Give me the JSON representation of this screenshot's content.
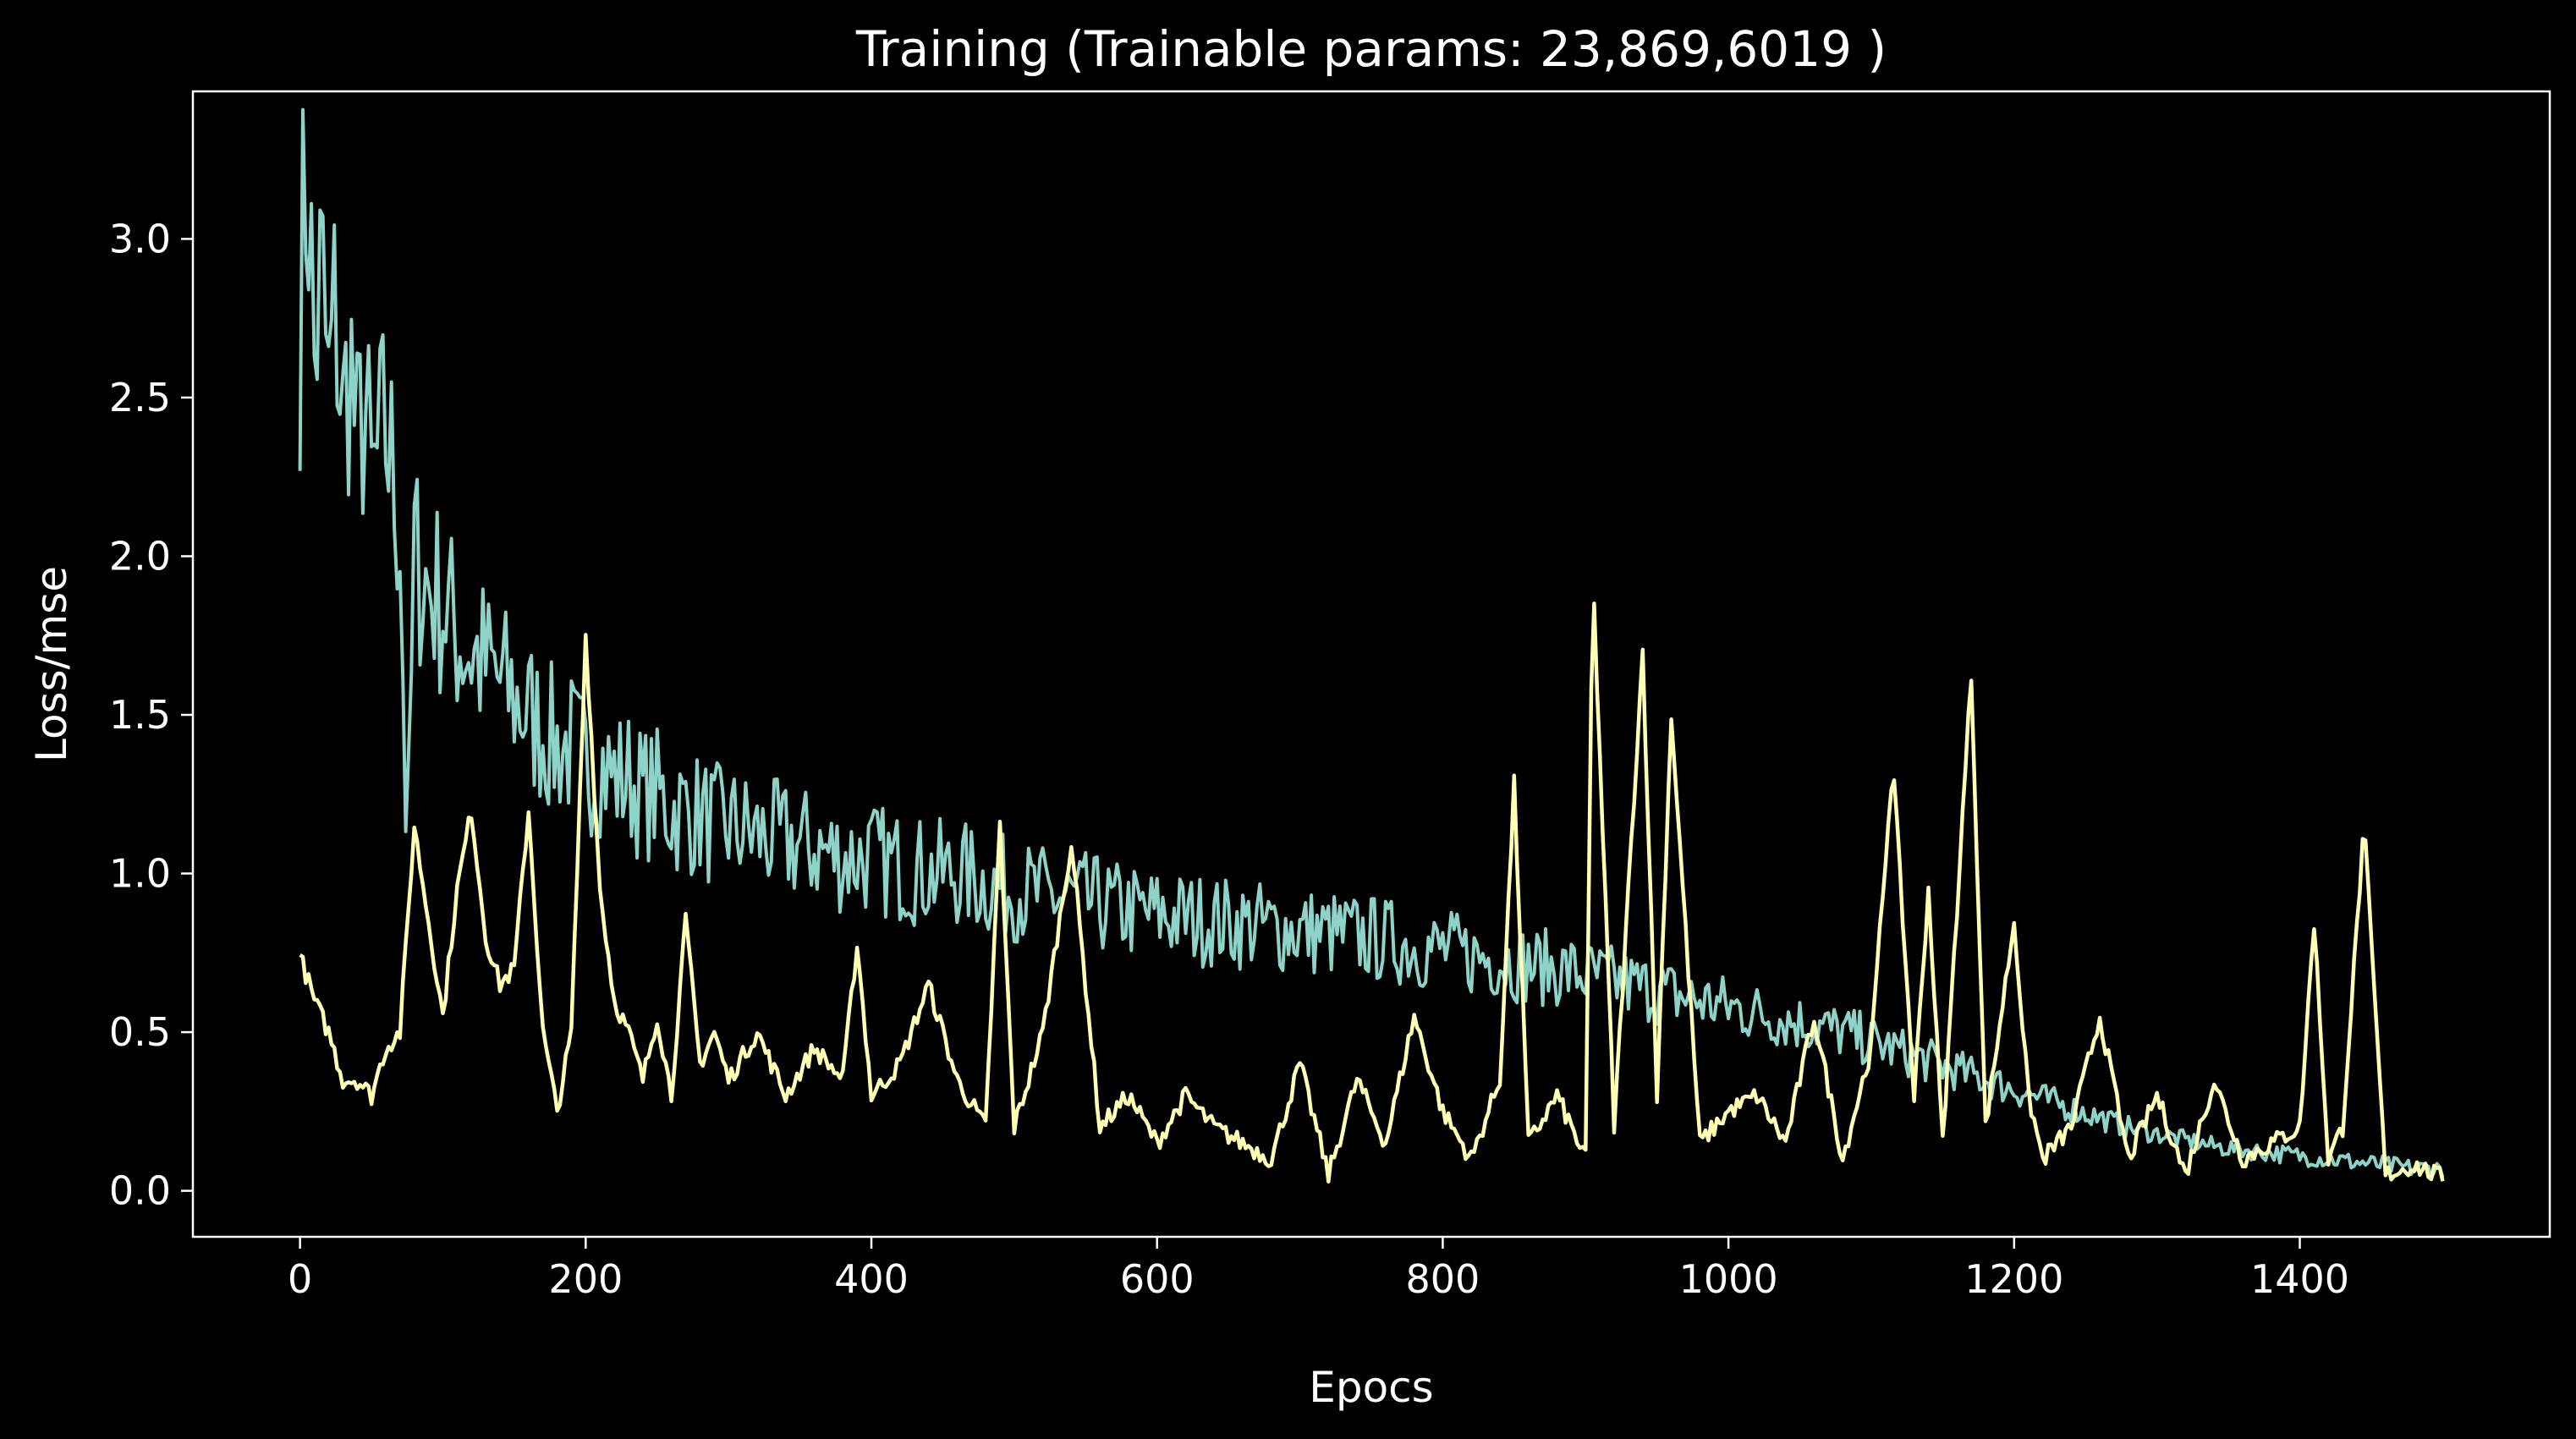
{
  "chart_data": {
    "type": "line",
    "title": "Training (Trainable params: 23,869,6019 )",
    "xlabel": "Epocs",
    "ylabel": "Loss/mse",
    "xlim": [
      -75,
      1575
    ],
    "ylim": [
      -0.145,
      3.465
    ],
    "xticks": [
      0,
      200,
      400,
      600,
      800,
      1000,
      1200,
      1400
    ],
    "yticks": [
      0.0,
      0.5,
      1.0,
      1.5,
      2.0,
      2.5,
      3.0
    ],
    "xtick_labels": [
      "0",
      "200",
      "400",
      "600",
      "800",
      "1000",
      "1200",
      "1400"
    ],
    "ytick_labels": [
      "0.0",
      "0.5",
      "1.0",
      "1.5",
      "2.0",
      "2.5",
      "3.0"
    ],
    "grid": false,
    "legend": "none",
    "background": "#000000",
    "series": [
      {
        "color": "#8dd3c7",
        "x": [
          0,
          5,
          10,
          15,
          20,
          25,
          30,
          35,
          40,
          45,
          50,
          60,
          70,
          75,
          80,
          90,
          100,
          110,
          120,
          130,
          140,
          150,
          160,
          170,
          180,
          190,
          200,
          210,
          220,
          230,
          240,
          250,
          260,
          270,
          280,
          290,
          300,
          320,
          340,
          360,
          380,
          400,
          420,
          440,
          460,
          480,
          500,
          520,
          540,
          560,
          580,
          600,
          620,
          640,
          660,
          680,
          700,
          720,
          740,
          760,
          780,
          800,
          820,
          840,
          860,
          880,
          900,
          920,
          940,
          960,
          980,
          1000,
          1020,
          1040,
          1060,
          1080,
          1100,
          1120,
          1140,
          1160,
          1180,
          1200,
          1220,
          1240,
          1260,
          1280,
          1300,
          1320,
          1340,
          1360,
          1380,
          1400,
          1420,
          1440,
          1460,
          1480,
          1500
        ],
        "y": [
          2.75,
          3.3,
          2.6,
          2.9,
          2.5,
          2.8,
          2.4,
          2.65,
          2.3,
          2.5,
          2.2,
          2.4,
          2.1,
          1.0,
          2.0,
          1.9,
          1.85,
          1.75,
          1.7,
          1.65,
          1.6,
          1.55,
          1.5,
          1.45,
          1.4,
          1.4,
          1.35,
          1.35,
          1.3,
          1.3,
          1.25,
          1.25,
          1.2,
          1.2,
          1.18,
          1.15,
          1.15,
          1.12,
          1.1,
          1.08,
          1.05,
          1.05,
          1.02,
          1.0,
          1.0,
          0.97,
          0.95,
          0.93,
          0.92,
          0.9,
          0.88,
          0.87,
          0.86,
          0.85,
          0.84,
          0.83,
          0.82,
          0.81,
          0.8,
          0.79,
          0.77,
          0.76,
          0.74,
          0.73,
          0.71,
          0.7,
          0.68,
          0.66,
          0.64,
          0.62,
          0.6,
          0.58,
          0.56,
          0.54,
          0.52,
          0.5,
          0.47,
          0.44,
          0.41,
          0.38,
          0.35,
          0.32,
          0.29,
          0.26,
          0.23,
          0.2,
          0.18,
          0.16,
          0.14,
          0.13,
          0.12,
          0.11,
          0.1,
          0.09,
          0.08,
          0.07,
          0.07
        ]
      },
      {
        "color": "#ffffb3",
        "x": [
          0,
          10,
          20,
          30,
          40,
          50,
          60,
          70,
          80,
          90,
          100,
          110,
          120,
          130,
          140,
          150,
          160,
          170,
          180,
          190,
          200,
          210,
          220,
          230,
          240,
          250,
          260,
          270,
          280,
          290,
          300,
          320,
          340,
          360,
          380,
          390,
          400,
          420,
          440,
          460,
          480,
          490,
          500,
          520,
          540,
          560,
          580,
          600,
          620,
          640,
          660,
          680,
          700,
          720,
          740,
          760,
          780,
          800,
          820,
          840,
          850,
          860,
          880,
          900,
          905,
          920,
          940,
          950,
          960,
          980,
          1000,
          1020,
          1040,
          1060,
          1080,
          1100,
          1115,
          1130,
          1140,
          1150,
          1170,
          1180,
          1200,
          1210,
          1220,
          1240,
          1260,
          1280,
          1300,
          1320,
          1340,
          1360,
          1380,
          1400,
          1410,
          1420,
          1430,
          1445,
          1460,
          1480,
          1500
        ],
        "y": [
          0.74,
          0.6,
          0.5,
          0.35,
          0.35,
          0.3,
          0.45,
          0.5,
          1.15,
          0.85,
          0.55,
          0.95,
          1.2,
          0.8,
          0.65,
          0.7,
          1.2,
          0.5,
          0.25,
          0.5,
          1.75,
          0.95,
          0.6,
          0.5,
          0.35,
          0.55,
          0.3,
          0.85,
          0.4,
          0.5,
          0.35,
          0.5,
          0.3,
          0.45,
          0.35,
          0.78,
          0.3,
          0.4,
          0.65,
          0.35,
          0.2,
          1.15,
          0.2,
          0.5,
          1.1,
          0.2,
          0.3,
          0.15,
          0.3,
          0.2,
          0.15,
          0.1,
          0.4,
          0.05,
          0.35,
          0.15,
          0.55,
          0.25,
          0.1,
          0.35,
          1.28,
          0.15,
          0.3,
          0.1,
          1.95,
          0.2,
          1.7,
          0.3,
          1.5,
          0.15,
          0.25,
          0.3,
          0.15,
          0.55,
          0.1,
          0.45,
          1.35,
          0.3,
          0.95,
          0.15,
          1.63,
          0.2,
          0.85,
          0.3,
          0.1,
          0.2,
          0.55,
          0.1,
          0.3,
          0.05,
          0.35,
          0.1,
          0.15,
          0.2,
          0.85,
          0.1,
          0.2,
          1.15,
          0.05,
          0.08,
          0.04
        ]
      }
    ]
  }
}
